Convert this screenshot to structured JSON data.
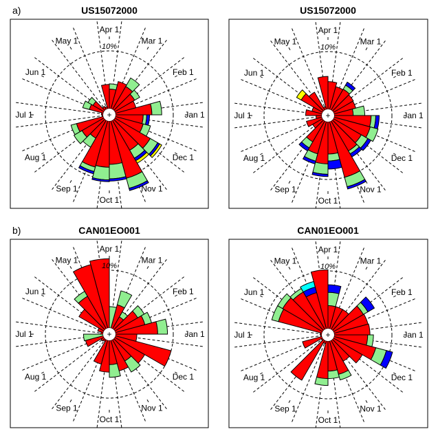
{
  "figure": {
    "panels_label_a": "a)",
    "panels_label_b": "b)"
  },
  "colors": {
    "red": "#ff0000",
    "green": "#90ee90",
    "blue": "#0000ff",
    "yellow": "#ffff00",
    "cyan": "#00ffff"
  },
  "chart_data": [
    {
      "type": "polar-bar",
      "title": "US15072000",
      "tag": "a)",
      "ring_label": "10%",
      "ring_value": 10,
      "month_labels": [
        "Jan 1",
        "Feb 1",
        "Mar 1",
        "Apr 1",
        "May 1",
        "Jun 1",
        "Jul 1",
        "Aug 1",
        "Sep 1",
        "Oct 1",
        "Nov 1",
        "Dec 1"
      ],
      "bins": "24 half-month bins starting Jan 1, counter-clockwise from east",
      "stack_order": [
        "red",
        "green",
        "blue",
        "yellow"
      ],
      "values": [
        {
          "red": 6.3,
          "green": 1.7
        },
        {
          "red": 3.7
        },
        {
          "red": 4.0,
          "green": 1.0
        },
        {
          "red": 4.6,
          "green": 1.7
        },
        {
          "red": 4.9
        },
        {
          "red": 3.4,
          "green": 0.9
        },
        {
          "red": 4.2
        },
        {
          "red": 0.4
        },
        {
          "red": 0.6
        },
        {
          "red": 2.2,
          "green": 1.0
        },
        {
          "red": 2.5,
          "green": 1.2
        },
        {
          "red": 0.3
        },
        {
          "red": 0.2
        },
        {
          "red": 4.8,
          "green": 1.0
        },
        {
          "red": 4.4,
          "green": 1.6
        },
        {
          "red": 3.6,
          "green": 1.8
        },
        {
          "red": 8.3,
          "green": 0.8,
          "blue": 0.4
        },
        {
          "red": 8.0,
          "green": 2.2,
          "blue": 0.3
        },
        {
          "red": 7.5,
          "green": 2.5,
          "blue": 0.4
        },
        {
          "red": 10.3,
          "green": 1.8,
          "blue": 0.4
        },
        {
          "red": 6.0,
          "green": 1.6,
          "blue": 0.5,
          "yellow": 0.5
        },
        {
          "red": 7.1,
          "green": 1.5,
          "blue": 0.4,
          "yellow": 0.4
        },
        {
          "red": 5.0,
          "green": 1.3
        },
        {
          "red": 4.8,
          "green": 0.6,
          "blue": 0.5
        }
      ]
    },
    {
      "type": "polar-bar",
      "title": "US15072000",
      "tag": "",
      "ring_label": "10%",
      "ring_value": 10,
      "month_labels": [
        "Jan 1",
        "Feb 1",
        "Mar 1",
        "Apr 1",
        "May 1",
        "Jun 1",
        "Jul 1",
        "Aug 1",
        "Sep 1",
        "Oct 1",
        "Nov 1",
        "Dec 1"
      ],
      "bins": "24 half-month bins starting Jan 1, counter-clockwise from east",
      "stack_order": [
        "red",
        "green",
        "blue",
        "yellow"
      ],
      "values": [
        {
          "red": 3.3,
          "green": 2.0
        },
        {
          "red": 3.9
        },
        {
          "red": 4.0
        },
        {
          "red": 4.2,
          "green": 0.8,
          "blue": 0.6
        },
        {
          "red": 4.1
        },
        {
          "red": 4.8
        },
        {
          "red": 5.7
        },
        {
          "red": 0.5
        },
        {
          "red": 3.6
        },
        {
          "red": 4.3,
          "yellow": 0.9
        },
        {
          "red": 1.8
        },
        {
          "red": 2.8
        },
        {
          "red": 1.0
        },
        {
          "red": 2.8
        },
        {
          "red": 2.0
        },
        {
          "red": 4.2,
          "green": 1.2,
          "blue": 0.6
        },
        {
          "red": 5.8,
          "green": 1.3,
          "blue": 0.5
        },
        {
          "red": 7.3,
          "green": 1.8,
          "blue": 0.4
        },
        {
          "red": 5.6,
          "green": 1.2,
          "blue": 1.4
        },
        {
          "red": 10.0,
          "green": 1.7,
          "blue": 0.4
        },
        {
          "red": 6.0,
          "green": 0.6,
          "blue": 0.6
        },
        {
          "red": 5.6,
          "green": 1.3,
          "blue": 0.6
        },
        {
          "red": 6.5,
          "green": 1.4
        },
        {
          "red": 6.4,
          "green": 0.8,
          "blue": 0.6
        }
      ]
    },
    {
      "type": "polar-bar",
      "title": "CAN01EO001",
      "tag": "b)",
      "ring_label": "10%",
      "ring_value": 10,
      "month_labels": [
        "Jan 1",
        "Feb 1",
        "Mar 1",
        "Apr 1",
        "May 1",
        "Jun 1",
        "Jul 1",
        "Aug 1",
        "Sep 1",
        "Oct 1",
        "Nov 1",
        "Dec 1"
      ],
      "bins": "24 half-month bins starting Jan 1, counter-clockwise from east",
      "stack_order": [
        "red",
        "green",
        "blue",
        "cyan"
      ],
      "values": [
        {
          "red": 7.3,
          "green": 1.7
        },
        {
          "red": 5.3,
          "green": 1.2
        },
        {
          "red": 4.6,
          "green": 1.3
        },
        {
          "red": 2.4,
          "green": 1.0
        },
        {
          "red": 4.2,
          "green": 2.5
        },
        {
          "green": 3.7
        },
        {
          "red": 12.0
        },
        {
          "red": 11.4
        },
        {
          "red": 6.5,
          "green": 1.0
        },
        {
          "red": 5.0
        },
        {
          "red": 1.0
        },
        {
          "red": 0.4
        },
        {
          "green": 3.4
        },
        {
          "red": 3.2
        },
        {
          "red": 0.6
        },
        {
          "red": 0.4
        },
        {
          "red": 4.3
        },
        {
          "red": 5.5
        },
        {
          "red": 4.2,
          "green": 2.2
        },
        {
          "red": 5.5
        },
        {
          "red": 4.3,
          "green": 2.2
        },
        {
          "red": 6.0
        },
        {
          "red": 10.0
        },
        {
          "red": 3.7
        }
      ]
    },
    {
      "type": "polar-bar",
      "title": "CAN01EO001",
      "tag": "",
      "ring_label": "10%",
      "ring_value": 10,
      "month_labels": [
        "Jan 1",
        "Feb 1",
        "Mar 1",
        "Apr 1",
        "May 1",
        "Jun 1",
        "Jul 1",
        "Aug 1",
        "Sep 1",
        "Oct 1",
        "Nov 1",
        "Dec 1"
      ],
      "bins": "24 half-month bins starting Jan 1, counter-clockwise from east",
      "stack_order": [
        "red",
        "green",
        "blue",
        "cyan"
      ],
      "values": [
        {
          "red": 6.2
        },
        {
          "red": 6.1
        },
        {
          "red": 6.0,
          "green": 0.9,
          "blue": 1.3
        },
        {
          "red": 4.0
        },
        {
          "red": 4.0
        },
        {
          "red": 4.0,
          "green": 2.3,
          "blue": 1.3
        },
        {
          "red": 10.2
        },
        {
          "red": 6.5,
          "blue": 1.0,
          "cyan": 1.0
        },
        {
          "red": 7.5,
          "green": 0.7
        },
        {
          "red": 8.0,
          "green": 1.0
        },
        {
          "red": 7.8,
          "green": 1.2
        },
        {
          "red": 0.3
        },
        {
          "red": 0.2
        },
        {
          "red": 3.5
        },
        {
          "red": 0.3
        },
        {
          "red": 8.0
        },
        {
          "red": 0.5
        },
        {
          "red": 6.5,
          "green": 1.2
        },
        {
          "red": 5.2,
          "green": 1.3
        },
        {
          "red": 6.0,
          "green": 1.0
        },
        {
          "red": 4.2
        },
        {
          "red": 5.8
        },
        {
          "red": 7.5,
          "green": 1.9,
          "blue": 1.1
        },
        {
          "red": 5.8,
          "green": 1.0
        }
      ]
    }
  ]
}
